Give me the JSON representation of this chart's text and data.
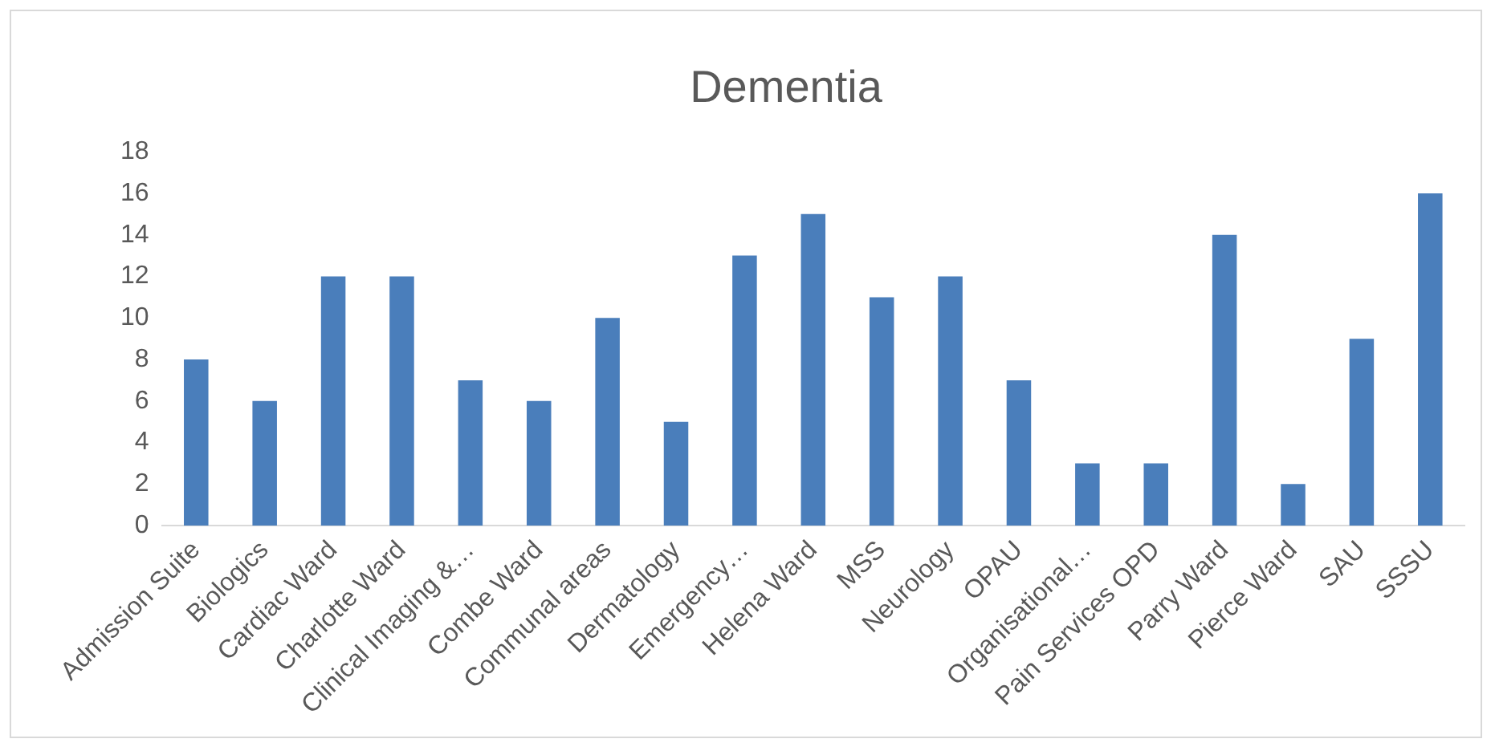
{
  "chart_data": {
    "type": "bar",
    "title": "Dementia",
    "categories": [
      "Admission Suite",
      "Biologics",
      "Cardiac Ward",
      "Charlotte Ward",
      "Clinical Imaging &…",
      "Combe Ward",
      "Communal areas",
      "Dermatology",
      "Emergency…",
      "Helena Ward",
      "MSS",
      "Neurology",
      "OPAU",
      "Organisational…",
      "Pain Services OPD",
      "Parry Ward",
      "Pierce Ward",
      "SAU",
      "SSSU"
    ],
    "values": [
      8,
      6,
      12,
      12,
      7,
      6,
      10,
      5,
      13,
      15,
      11,
      12,
      7,
      3,
      3,
      14,
      2,
      9,
      16
    ],
    "color": "#4a7ebb",
    "ylim": [
      0,
      18
    ],
    "yticks": [
      0,
      2,
      4,
      6,
      8,
      10,
      12,
      14,
      16,
      18
    ],
    "grid": false,
    "legend": false
  }
}
